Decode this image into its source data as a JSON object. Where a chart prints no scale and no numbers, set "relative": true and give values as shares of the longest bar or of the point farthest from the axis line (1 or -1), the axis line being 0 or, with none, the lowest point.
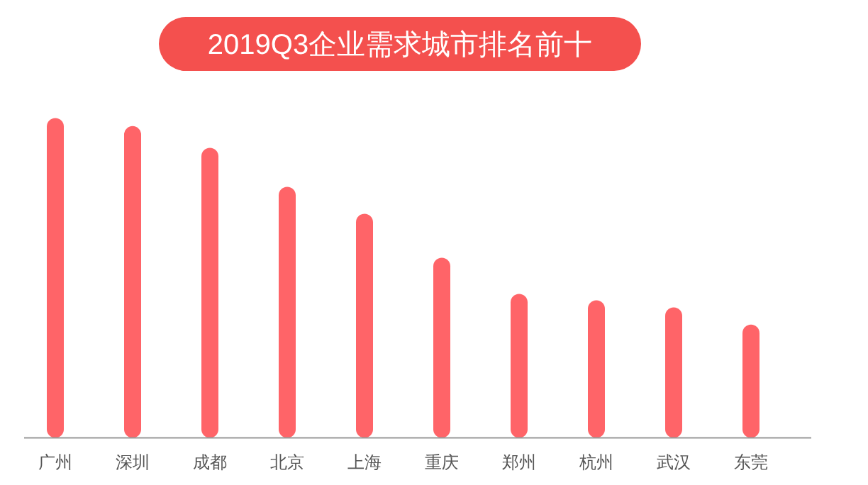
{
  "chart_data": {
    "type": "bar",
    "title": "2019Q3企业需求城市排名前十",
    "categories": [
      "广州",
      "深圳",
      "成都",
      "北京",
      "上海",
      "重庆",
      "郑州",
      "杭州",
      "武汉",
      "东莞"
    ],
    "values": [
      1,
      0.975,
      0.907,
      0.785,
      0.701,
      0.563,
      0.45,
      0.43,
      0.408,
      0.354
    ],
    "color": "#ff6468",
    "relative": true
  }
}
